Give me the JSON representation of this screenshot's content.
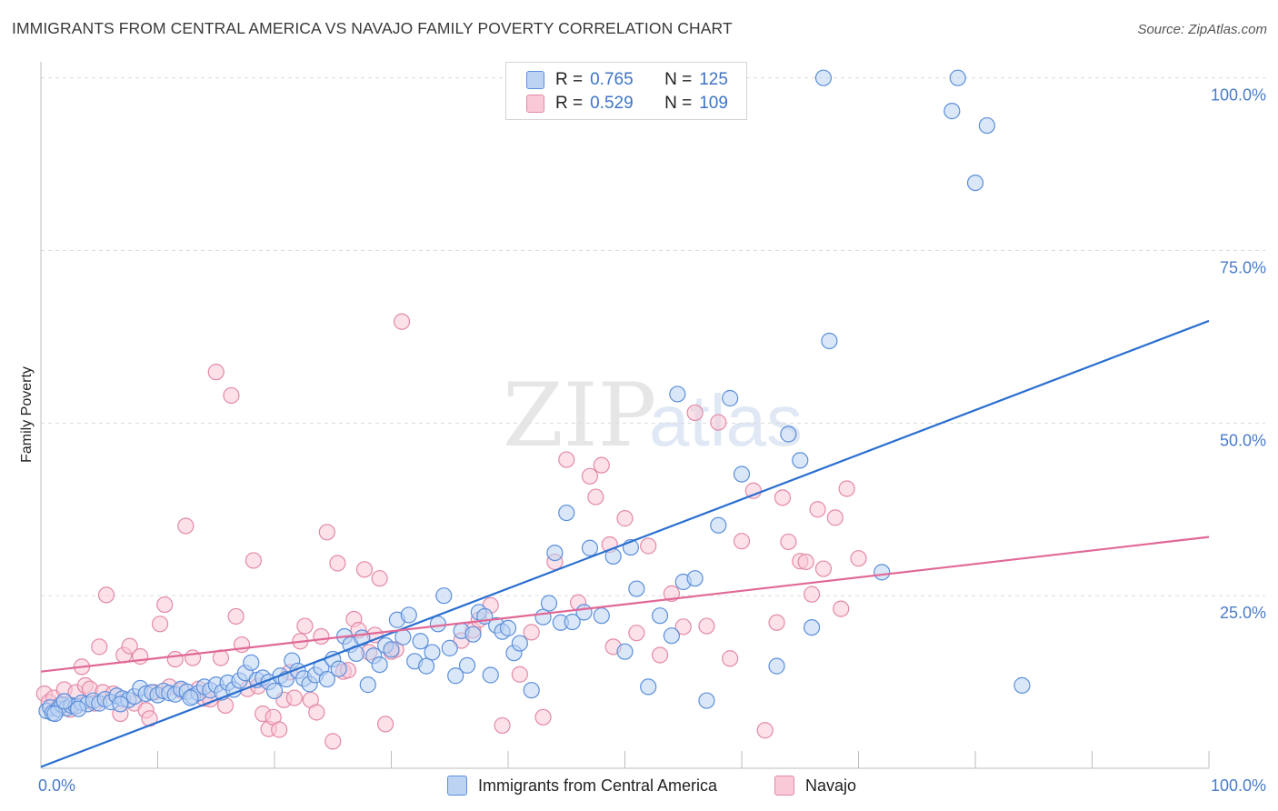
{
  "title": "IMMIGRANTS FROM CENTRAL AMERICA VS NAVAJO FAMILY POVERTY CORRELATION CHART",
  "source": "Source: ZipAtlas.com",
  "watermark": {
    "zip": "ZIP",
    "atlas": "atlas"
  },
  "legend": {
    "rows": [
      {
        "r_label": "R =",
        "r_value": "0.765",
        "n_label": "N =",
        "n_value": "125",
        "color": "#5b8fdb",
        "fill": "#bcd3f3"
      },
      {
        "r_label": "R =",
        "r_value": "0.529",
        "n_label": "N =",
        "n_value": "109",
        "color": "#e38aa6",
        "fill": "#f9c9d7"
      }
    ]
  },
  "bottom_legend": [
    {
      "label": "Immigrants from Central America",
      "color": "#5b8fdb",
      "fill": "#bcd3f3"
    },
    {
      "label": "Navajo",
      "color": "#e38aa6",
      "fill": "#f9c9d7"
    }
  ],
  "chart_data": {
    "type": "scatter",
    "title": "IMMIGRANTS FROM CENTRAL AMERICA VS NAVAJO FAMILY POVERTY CORRELATION CHART",
    "xlabel": "",
    "ylabel": "Family Poverty",
    "xlim": [
      0,
      100
    ],
    "ylim": [
      0,
      100
    ],
    "x_tick_labels": [
      "0.0%",
      "100.0%"
    ],
    "y_tick_labels": [
      "25.0%",
      "50.0%",
      "75.0%",
      "100.0%"
    ],
    "y_ticks": [
      25,
      50,
      75,
      100
    ],
    "grid": true,
    "legend_position": "top-center",
    "series": [
      {
        "name": "Immigrants from Central America",
        "color": "#5b8fdb",
        "fill": "#bcd3f3",
        "trend": {
          "x": [
            0,
            100
          ],
          "y": [
            0.2,
            64.8
          ]
        },
        "points": [
          [
            0.5,
            8.3
          ],
          [
            0.8,
            8.8
          ],
          [
            1.0,
            8.0
          ],
          [
            1.5,
            8.6
          ],
          [
            1.8,
            9.2
          ],
          [
            2.2,
            8.7
          ],
          [
            2.6,
            9.1
          ],
          [
            3.0,
            9.0
          ],
          [
            3.5,
            9.5
          ],
          [
            4.0,
            9.3
          ],
          [
            4.5,
            9.8
          ],
          [
            5.0,
            9.4
          ],
          [
            5.5,
            10.0
          ],
          [
            6.0,
            9.6
          ],
          [
            6.5,
            10.5
          ],
          [
            7.0,
            10.1
          ],
          [
            7.5,
            9.9
          ],
          [
            8.0,
            10.4
          ],
          [
            8.5,
            11.6
          ],
          [
            9.0,
            10.8
          ],
          [
            9.5,
            11.0
          ],
          [
            10.0,
            10.6
          ],
          [
            10.5,
            11.2
          ],
          [
            11.0,
            10.9
          ],
          [
            11.5,
            10.7
          ],
          [
            12.0,
            11.5
          ],
          [
            12.5,
            11.1
          ],
          [
            13.0,
            10.4
          ],
          [
            13.5,
            10.9
          ],
          [
            14.0,
            11.8
          ],
          [
            14.5,
            11.3
          ],
          [
            15.0,
            12.1
          ],
          [
            15.5,
            11.0
          ],
          [
            16.0,
            12.4
          ],
          [
            16.5,
            11.4
          ],
          [
            17.0,
            12.7
          ],
          [
            17.5,
            13.8
          ],
          [
            18.0,
            15.3
          ],
          [
            18.5,
            12.8
          ],
          [
            19.0,
            13.1
          ],
          [
            19.5,
            12.5
          ],
          [
            20.0,
            11.2
          ],
          [
            20.5,
            13.4
          ],
          [
            21.0,
            12.9
          ],
          [
            21.5,
            15.6
          ],
          [
            22.0,
            14.1
          ],
          [
            22.5,
            13.0
          ],
          [
            23.0,
            12.2
          ],
          [
            23.5,
            13.5
          ],
          [
            24.0,
            14.6
          ],
          [
            24.5,
            12.9
          ],
          [
            25.0,
            15.8
          ],
          [
            25.5,
            14.4
          ],
          [
            26.0,
            19.1
          ],
          [
            26.5,
            17.9
          ],
          [
            27.0,
            16.6
          ],
          [
            27.5,
            18.9
          ],
          [
            28.0,
            12.1
          ],
          [
            28.5,
            16.3
          ],
          [
            29.0,
            15.0
          ],
          [
            29.5,
            17.8
          ],
          [
            30.0,
            17.2
          ],
          [
            30.5,
            21.5
          ],
          [
            31.0,
            19.0
          ],
          [
            31.5,
            22.2
          ],
          [
            32.0,
            15.5
          ],
          [
            32.5,
            18.4
          ],
          [
            33.0,
            14.8
          ],
          [
            33.5,
            16.8
          ],
          [
            34.0,
            20.9
          ],
          [
            34.5,
            25.0
          ],
          [
            35.0,
            17.4
          ],
          [
            35.5,
            13.4
          ],
          [
            36.0,
            19.9
          ],
          [
            36.5,
            14.9
          ],
          [
            37.0,
            19.4
          ],
          [
            37.5,
            22.6
          ],
          [
            38.0,
            22.0
          ],
          [
            38.5,
            13.5
          ],
          [
            39.0,
            20.7
          ],
          [
            39.5,
            19.8
          ],
          [
            40.0,
            20.3
          ],
          [
            40.5,
            16.7
          ],
          [
            41.0,
            18.1
          ],
          [
            42.0,
            11.3
          ],
          [
            43.0,
            21.9
          ],
          [
            43.5,
            23.9
          ],
          [
            44.0,
            31.2
          ],
          [
            44.5,
            21.1
          ],
          [
            45.0,
            37.0
          ],
          [
            45.5,
            21.2
          ],
          [
            46.5,
            22.6
          ],
          [
            47.0,
            31.9
          ],
          [
            48.0,
            22.1
          ],
          [
            49.0,
            30.7
          ],
          [
            50.0,
            16.9
          ],
          [
            50.5,
            32.0
          ],
          [
            51.0,
            26.0
          ],
          [
            52.0,
            11.8
          ],
          [
            53.0,
            22.1
          ],
          [
            54.0,
            19.2
          ],
          [
            54.5,
            54.2
          ],
          [
            55.0,
            27.0
          ],
          [
            56.0,
            27.5
          ],
          [
            57.0,
            9.8
          ],
          [
            58.0,
            35.2
          ],
          [
            59.0,
            53.6
          ],
          [
            60.0,
            42.6
          ],
          [
            63.0,
            14.8
          ],
          [
            64.0,
            48.4
          ],
          [
            65.0,
            44.6
          ],
          [
            66.0,
            20.4
          ],
          [
            67.0,
            100.0
          ],
          [
            67.5,
            61.9
          ],
          [
            72.0,
            28.4
          ],
          [
            78.0,
            95.2
          ],
          [
            78.5,
            100.0
          ],
          [
            80.0,
            84.8
          ],
          [
            81.0,
            93.1
          ],
          [
            84.0,
            12.0
          ],
          [
            1.2,
            7.9
          ],
          [
            2.0,
            9.7
          ],
          [
            3.2,
            8.6
          ],
          [
            6.8,
            9.3
          ],
          [
            12.8,
            10.2
          ]
        ]
      },
      {
        "name": "Navajo",
        "color": "#e38aa6",
        "fill": "#f9c9d7",
        "trend": {
          "x": [
            0,
            100
          ],
          "y": [
            14.0,
            33.5
          ]
        },
        "points": [
          [
            0.3,
            10.8
          ],
          [
            0.7,
            9.6
          ],
          [
            1.1,
            10.2
          ],
          [
            1.6,
            9.1
          ],
          [
            2.0,
            11.4
          ],
          [
            2.5,
            8.5
          ],
          [
            3.0,
            11.0
          ],
          [
            3.5,
            14.7
          ],
          [
            3.8,
            12.0
          ],
          [
            4.2,
            11.5
          ],
          [
            4.6,
            9.4
          ],
          [
            5.0,
            17.6
          ],
          [
            5.3,
            11.0
          ],
          [
            5.6,
            25.1
          ],
          [
            6.2,
            10.8
          ],
          [
            6.8,
            7.9
          ],
          [
            7.1,
            16.4
          ],
          [
            7.6,
            17.7
          ],
          [
            8.0,
            9.4
          ],
          [
            8.5,
            16.2
          ],
          [
            9.0,
            8.4
          ],
          [
            9.3,
            7.2
          ],
          [
            9.7,
            11.0
          ],
          [
            10.2,
            20.9
          ],
          [
            10.6,
            23.7
          ],
          [
            11.0,
            11.8
          ],
          [
            11.5,
            15.8
          ],
          [
            12.0,
            11.3
          ],
          [
            12.4,
            35.1
          ],
          [
            13.0,
            16.0
          ],
          [
            13.5,
            11.5
          ],
          [
            14.0,
            10.1
          ],
          [
            14.5,
            10.0
          ],
          [
            15.0,
            57.4
          ],
          [
            15.4,
            16.0
          ],
          [
            15.8,
            9.1
          ],
          [
            16.3,
            54.0
          ],
          [
            16.7,
            22.0
          ],
          [
            17.2,
            17.9
          ],
          [
            17.7,
            11.5
          ],
          [
            18.2,
            30.1
          ],
          [
            18.6,
            11.9
          ],
          [
            19.0,
            7.9
          ],
          [
            19.5,
            5.7
          ],
          [
            19.9,
            7.4
          ],
          [
            20.4,
            5.6
          ],
          [
            20.8,
            9.9
          ],
          [
            21.3,
            13.9
          ],
          [
            21.7,
            10.2
          ],
          [
            22.2,
            18.4
          ],
          [
            22.6,
            20.6
          ],
          [
            23.1,
            9.9
          ],
          [
            23.6,
            8.1
          ],
          [
            24.0,
            19.1
          ],
          [
            24.5,
            34.2
          ],
          [
            25.0,
            3.9
          ],
          [
            25.4,
            29.7
          ],
          [
            25.9,
            14.0
          ],
          [
            26.3,
            14.2
          ],
          [
            26.8,
            21.6
          ],
          [
            27.2,
            20.0
          ],
          [
            27.7,
            28.8
          ],
          [
            28.1,
            16.8
          ],
          [
            28.6,
            19.3
          ],
          [
            29.0,
            27.5
          ],
          [
            29.5,
            6.4
          ],
          [
            30.0,
            16.9
          ],
          [
            30.4,
            17.2
          ],
          [
            30.9,
            64.7
          ],
          [
            36.0,
            18.5
          ],
          [
            37.0,
            20.0
          ],
          [
            37.5,
            21.5
          ],
          [
            38.5,
            23.6
          ],
          [
            39.5,
            6.2
          ],
          [
            41.0,
            13.6
          ],
          [
            42.0,
            19.7
          ],
          [
            43.0,
            7.4
          ],
          [
            44.0,
            29.9
          ],
          [
            45.0,
            44.7
          ],
          [
            46.0,
            24.0
          ],
          [
            47.0,
            42.3
          ],
          [
            47.5,
            39.3
          ],
          [
            48.0,
            43.9
          ],
          [
            48.7,
            32.4
          ],
          [
            49.0,
            17.6
          ],
          [
            50.0,
            36.2
          ],
          [
            51.0,
            19.6
          ],
          [
            52.0,
            32.2
          ],
          [
            53.0,
            16.4
          ],
          [
            54.0,
            25.3
          ],
          [
            55.0,
            20.5
          ],
          [
            56.0,
            51.5
          ],
          [
            57.0,
            20.6
          ],
          [
            58.0,
            50.1
          ],
          [
            59.0,
            15.9
          ],
          [
            60.0,
            32.9
          ],
          [
            61.0,
            40.2
          ],
          [
            62.0,
            5.5
          ],
          [
            63.0,
            21.1
          ],
          [
            63.5,
            39.2
          ],
          [
            64.0,
            32.8
          ],
          [
            65.0,
            30.0
          ],
          [
            65.5,
            29.9
          ],
          [
            66.0,
            25.2
          ],
          [
            66.5,
            37.5
          ],
          [
            67.0,
            28.9
          ],
          [
            68.0,
            36.3
          ],
          [
            68.5,
            23.1
          ],
          [
            69.0,
            40.5
          ],
          [
            70.0,
            30.4
          ]
        ]
      }
    ]
  }
}
